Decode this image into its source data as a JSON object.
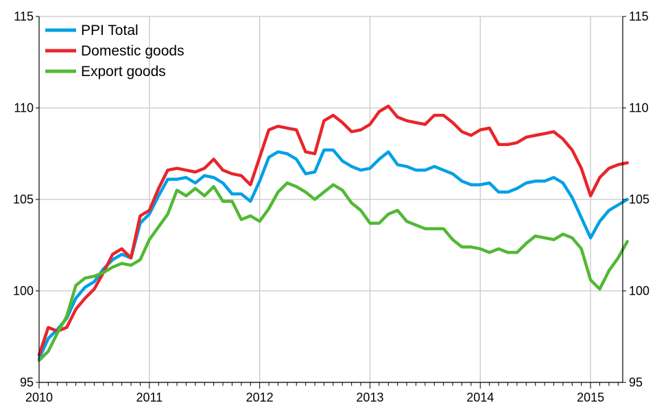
{
  "chart_data": {
    "type": "line",
    "title": "",
    "xlabel": "",
    "ylabel": "",
    "x_start": "2010-01",
    "x_ticks": [
      "2010",
      "2011",
      "2012",
      "2013",
      "2014",
      "2015"
    ],
    "y_ticks": [
      "95",
      "100",
      "105",
      "110",
      "115"
    ],
    "ylim": [
      95,
      115
    ],
    "grid": true,
    "legend": "top-left",
    "series": [
      {
        "name": "PPI Total",
        "color": "#00a0e6",
        "values": [
          96.3,
          97.4,
          97.9,
          98.5,
          99.6,
          100.2,
          100.5,
          101.2,
          101.7,
          102.0,
          101.8,
          103.7,
          104.2,
          105.2,
          106.1,
          106.1,
          106.2,
          105.9,
          106.3,
          106.2,
          105.9,
          105.3,
          105.3,
          104.9,
          106.0,
          107.3,
          107.6,
          107.5,
          107.2,
          106.4,
          106.5,
          107.7,
          107.7,
          107.1,
          106.8,
          106.6,
          106.7,
          107.2,
          107.6,
          106.9,
          106.8,
          106.6,
          106.6,
          106.8,
          106.6,
          106.4,
          106.0,
          105.8,
          105.8,
          105.9,
          105.4,
          105.4,
          105.6,
          105.9,
          106.0,
          106.0,
          106.2,
          105.9,
          105.1,
          104.0,
          102.9,
          103.8,
          104.4,
          104.7,
          105.0
        ]
      },
      {
        "name": "Domestic goods",
        "color": "#e8252b",
        "values": [
          96.5,
          98.0,
          97.8,
          98.0,
          99.0,
          99.6,
          100.1,
          101.0,
          102.0,
          102.3,
          101.8,
          104.1,
          104.4,
          105.6,
          106.6,
          106.7,
          106.6,
          106.5,
          106.7,
          107.2,
          106.6,
          106.4,
          106.3,
          105.8,
          107.3,
          108.8,
          109.0,
          108.9,
          108.8,
          107.6,
          107.5,
          109.3,
          109.6,
          109.2,
          108.7,
          108.8,
          109.1,
          109.8,
          110.1,
          109.5,
          109.3,
          109.2,
          109.1,
          109.6,
          109.6,
          109.2,
          108.7,
          108.5,
          108.8,
          108.9,
          108.0,
          108.0,
          108.1,
          108.4,
          108.5,
          108.6,
          108.7,
          108.3,
          107.7,
          106.7,
          105.2,
          106.2,
          106.7,
          106.9,
          107.0
        ]
      },
      {
        "name": "Export goods",
        "color": "#52b834",
        "values": [
          96.2,
          96.7,
          97.7,
          98.6,
          100.3,
          100.7,
          100.8,
          101.0,
          101.3,
          101.5,
          101.4,
          101.7,
          102.8,
          103.5,
          104.2,
          105.5,
          105.2,
          105.6,
          105.2,
          105.7,
          104.9,
          104.9,
          103.9,
          104.1,
          103.8,
          104.5,
          105.4,
          105.9,
          105.7,
          105.4,
          105.0,
          105.4,
          105.8,
          105.5,
          104.8,
          104.4,
          103.7,
          103.7,
          104.2,
          104.4,
          103.8,
          103.6,
          103.4,
          103.4,
          103.4,
          102.8,
          102.4,
          102.4,
          102.3,
          102.1,
          102.3,
          102.1,
          102.1,
          102.6,
          103.0,
          102.9,
          102.8,
          103.1,
          102.9,
          102.3,
          100.6,
          100.1,
          101.1,
          101.8,
          102.7
        ]
      }
    ]
  }
}
